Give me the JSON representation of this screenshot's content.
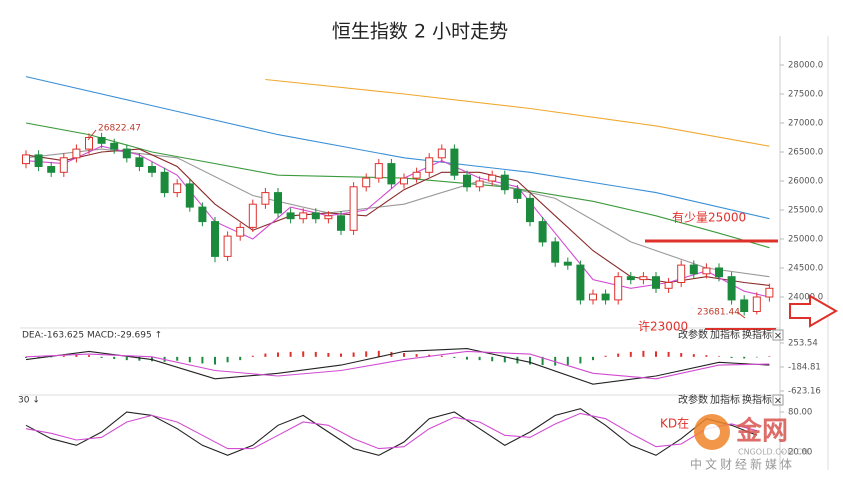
{
  "chart_data": [
    {
      "type": "candlestick",
      "title": "恒生指数 2 小时走势",
      "open": [
        26300,
        26450,
        26250,
        26150,
        26400,
        26550,
        26750,
        26650,
        26550,
        26400,
        26250,
        26150,
        25800,
        25950,
        25550,
        25300,
        24700,
        25050,
        25200,
        25600,
        25800,
        25450,
        25350,
        25450,
        25350,
        25400,
        25150,
        25900,
        26050,
        26300,
        25950,
        26050,
        26150,
        26400,
        26550,
        26100,
        25900,
        26000,
        26100,
        25850,
        25700,
        25300,
        24950,
        24600,
        24550,
        23950,
        24050,
        23950,
        24350,
        24300,
        24350,
        24150,
        24250,
        24550,
        24400,
        24500,
        24350,
        23950,
        23750,
        24000
      ],
      "high": [
        26530,
        26530,
        26330,
        26480,
        26630,
        26822,
        26830,
        26730,
        26630,
        26480,
        26330,
        26230,
        26030,
        26030,
        25630,
        25380,
        25130,
        25280,
        25680,
        25880,
        25880,
        25530,
        25530,
        25530,
        25480,
        25480,
        25980,
        26130,
        26380,
        26380,
        26130,
        26230,
        26480,
        26630,
        26630,
        26180,
        26080,
        26180,
        26180,
        25930,
        25780,
        25380,
        25030,
        24680,
        24630,
        24130,
        24130,
        24430,
        24430,
        24430,
        24430,
        24330,
        24630,
        24630,
        24580,
        24580,
        24430,
        24030,
        24080,
        24230
      ],
      "low": [
        26220,
        26170,
        26070,
        26070,
        26320,
        26470,
        26570,
        26470,
        26320,
        26170,
        26070,
        25720,
        25720,
        25470,
        25220,
        24600,
        24620,
        24970,
        25120,
        25520,
        25370,
        25270,
        25270,
        25270,
        25270,
        25070,
        25070,
        25820,
        25970,
        25870,
        25870,
        25970,
        26070,
        26320,
        26020,
        25820,
        25820,
        25920,
        25770,
        25620,
        25220,
        24870,
        24520,
        24470,
        23870,
        23870,
        23870,
        23870,
        24220,
        24220,
        24070,
        24070,
        24170,
        24320,
        24320,
        24270,
        23870,
        23681,
        23700,
        23920
      ],
      "close": [
        26450,
        26250,
        26150,
        26400,
        26550,
        26750,
        26650,
        26550,
        26400,
        26250,
        26150,
        25800,
        25950,
        25550,
        25300,
        24700,
        25050,
        25200,
        25600,
        25800,
        25450,
        25350,
        25450,
        25350,
        25400,
        25150,
        25900,
        26050,
        26300,
        25950,
        26050,
        26150,
        26400,
        26550,
        26100,
        25900,
        26000,
        26100,
        25850,
        25700,
        25300,
        24950,
        24600,
        24550,
        23950,
        24050,
        23950,
        24350,
        24300,
        24350,
        24150,
        24250,
        24550,
        24400,
        24500,
        24350,
        23950,
        23750,
        24000,
        24150
      ],
      "up_color": "#e0302a",
      "down_color": "#1b8a3c",
      "lines": [
        {
          "color": "#3a8fd6",
          "x": [
            0,
            10,
            20,
            30,
            40,
            50,
            59
          ],
          "values": [
            27800,
            27300,
            26800,
            26400,
            26150,
            25800,
            25350
          ]
        },
        {
          "color": "#f0a830",
          "x": [
            19,
            30,
            40,
            50,
            59
          ],
          "values": [
            27750,
            27500,
            27250,
            26950,
            26600
          ]
        },
        {
          "color": "#3d9a3d",
          "x": [
            0,
            5,
            10,
            20,
            30,
            38,
            45,
            50,
            55,
            59
          ],
          "values": [
            27000,
            26800,
            26500,
            26100,
            26050,
            25900,
            25650,
            25400,
            25100,
            24850
          ]
        },
        {
          "color": "#999999",
          "x": [
            0,
            6,
            12,
            18,
            24,
            30,
            36,
            42,
            48,
            54,
            59
          ],
          "values": [
            26400,
            26550,
            26400,
            25750,
            25450,
            25600,
            26000,
            25700,
            24950,
            24500,
            24350
          ]
        },
        {
          "color": "#8b2a2a",
          "x": [
            0,
            3,
            6,
            9,
            12,
            15,
            18,
            21,
            24,
            27,
            30,
            33,
            36,
            39,
            42,
            45,
            48,
            51,
            54,
            57,
            59
          ],
          "values": [
            26450,
            26350,
            26500,
            26550,
            26250,
            25600,
            25150,
            25400,
            25450,
            25400,
            25850,
            26150,
            26150,
            26000,
            25400,
            24800,
            24350,
            24250,
            24350,
            24250,
            24200
          ]
        },
        {
          "color": "#d24bd2",
          "x": [
            0,
            3,
            6,
            9,
            12,
            15,
            18,
            21,
            24,
            27,
            30,
            33,
            36,
            39,
            42,
            45,
            48,
            51,
            54,
            57,
            59
          ],
          "values": [
            26350,
            26300,
            26600,
            26450,
            26100,
            25300,
            25000,
            25550,
            25400,
            25500,
            26050,
            26350,
            26050,
            25900,
            25100,
            24300,
            24150,
            24250,
            24450,
            24100,
            24000
          ]
        }
      ],
      "ylim": [
        23500,
        28500
      ],
      "yticks": [
        {
          "value": 24000,
          "label": "24000.0"
        },
        {
          "value": 24500,
          "label": "24500.0"
        },
        {
          "value": 25000,
          "label": "25000.0"
        },
        {
          "value": 25500,
          "label": "25500.0"
        },
        {
          "value": 26000,
          "label": "26000.0"
        },
        {
          "value": 26500,
          "label": "26500.0"
        },
        {
          "value": 27000,
          "label": "27000.0"
        },
        {
          "value": 27500,
          "label": "27500.0"
        },
        {
          "value": 28000,
          "label": "28000.0"
        }
      ],
      "annotations": [
        "26822.47",
        "23681.44",
        "有少量25000",
        "许23000"
      ]
    },
    {
      "type": "macd",
      "header": "DEA:-163.625  MACD:-29.695 ↑",
      "values": [
        -20,
        -30,
        -10,
        20,
        40,
        30,
        -20,
        -40,
        -60,
        -70,
        -80,
        -90,
        -70,
        -100,
        -120,
        -140,
        -100,
        -60,
        20,
        60,
        80,
        90,
        100,
        90,
        70,
        60,
        80,
        100,
        110,
        90,
        70,
        50,
        40,
        20,
        -20,
        -50,
        -60,
        -80,
        -100,
        -120,
        -140,
        -150,
        -160,
        -150,
        -120,
        -60,
        20,
        60,
        90,
        110,
        100,
        90,
        70,
        50,
        30,
        10,
        -20,
        -30,
        -10,
        10
      ],
      "up_color": "#e0302a",
      "down_color": "#1b8a3c",
      "lines": [
        {
          "color": "#222222",
          "x": [
            0,
            5,
            10,
            15,
            20,
            25,
            30,
            35,
            40,
            45,
            50,
            55,
            59
          ],
          "values": [
            -50,
            100,
            -50,
            -400,
            -300,
            -150,
            100,
            150,
            -100,
            -500,
            -350,
            -100,
            -150
          ]
        },
        {
          "color": "#d24bd2",
          "x": [
            0,
            5,
            10,
            15,
            20,
            25,
            30,
            35,
            40,
            45,
            50,
            55,
            59
          ],
          "values": [
            0,
            50,
            0,
            -250,
            -350,
            -250,
            -50,
            100,
            50,
            -300,
            -400,
            -150,
            -130
          ]
        }
      ],
      "ylim": [
        -660,
        490
      ],
      "yticks": [
        -623.16,
        -184.81,
        253.54
      ]
    },
    {
      "type": "kd",
      "header": "30 ↓",
      "lines": [
        {
          "color": "#222222",
          "x": [
            0,
            2,
            4,
            6,
            8,
            10,
            12,
            14,
            16,
            18,
            20,
            22,
            24,
            26,
            28,
            30,
            32,
            34,
            36,
            38,
            40,
            42,
            44,
            46,
            48,
            50,
            52,
            54,
            56,
            58
          ],
          "values": [
            60,
            40,
            30,
            50,
            80,
            75,
            55,
            30,
            15,
            30,
            60,
            75,
            50,
            25,
            15,
            35,
            70,
            80,
            55,
            30,
            50,
            75,
            85,
            60,
            30,
            15,
            40,
            70,
            60,
            45
          ]
        },
        {
          "color": "#d24bd2",
          "x": [
            0,
            2,
            4,
            6,
            8,
            10,
            12,
            14,
            16,
            18,
            20,
            22,
            24,
            26,
            28,
            30,
            32,
            34,
            36,
            38,
            40,
            42,
            44,
            46,
            48,
            50,
            52,
            54,
            56,
            58
          ],
          "values": [
            55,
            48,
            38,
            42,
            65,
            75,
            65,
            45,
            25,
            25,
            45,
            65,
            60,
            40,
            25,
            28,
            55,
            72,
            65,
            45,
            42,
            62,
            78,
            70,
            48,
            28,
            32,
            55,
            62,
            52
          ]
        }
      ],
      "ylim": [
        0,
        100
      ],
      "yticks": [
        {
          "value": 20,
          "label": "20.00"
        },
        {
          "value": 80,
          "label": "80.00"
        }
      ],
      "annotation": "KD在"
    }
  ],
  "toolbar": [
    "改参数",
    "加指标",
    "换指标",
    "×"
  ],
  "watermark": {
    "brand": "金网",
    "url": "CNGOLD.COM.CN",
    "slogan": "中文财经新媒体"
  }
}
